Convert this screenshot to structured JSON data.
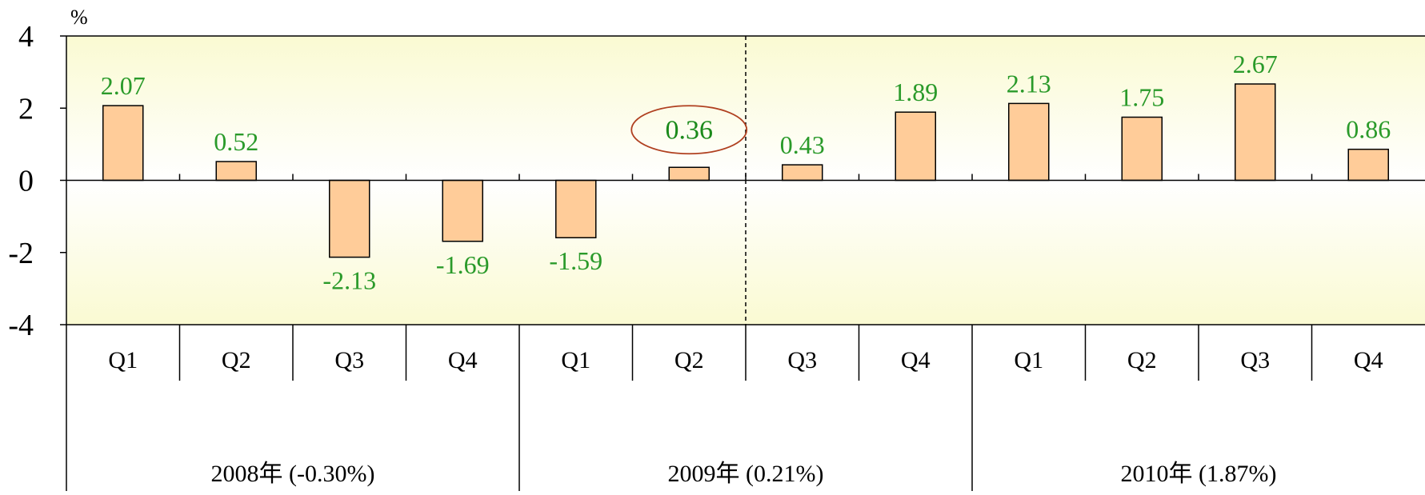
{
  "chart_data": {
    "type": "bar",
    "unit_label": "%",
    "ylim": [
      -4,
      4
    ],
    "yticks": [
      "4",
      "2",
      "0",
      "-2",
      "-4"
    ],
    "ytick_values": [
      4,
      2,
      0,
      -2,
      -4
    ],
    "categories": [
      "Q1",
      "Q2",
      "Q3",
      "Q4",
      "Q1",
      "Q2",
      "Q3",
      "Q4",
      "Q1",
      "Q2",
      "Q3",
      "Q4"
    ],
    "values": [
      2.07,
      0.52,
      -2.13,
      -1.69,
      -1.59,
      0.36,
      0.43,
      1.89,
      2.13,
      1.75,
      2.67,
      0.86
    ],
    "value_labels": [
      "2.07",
      "0.52",
      "-2.13",
      "-1.69",
      "-1.59",
      "0.36",
      "0.43",
      "1.89",
      "2.13",
      "1.75",
      "2.67",
      "0.86"
    ],
    "highlighted_index": 5,
    "groups": [
      {
        "label": "2008年 (-0.30%)",
        "start": 0,
        "count": 4
      },
      {
        "label": "2009年 (0.21%)",
        "start": 4,
        "count": 4
      },
      {
        "label": "2010年 (1.87%)",
        "start": 8,
        "count": 4
      }
    ],
    "divider_after_index": 5,
    "bar_color": "#ffcc99",
    "label_color": "#2a9a2a",
    "highlight_ellipse_color": "#b04020",
    "plot_background_top": "#fafad2",
    "plot_background_mid": "#ffffff",
    "grid": false
  }
}
